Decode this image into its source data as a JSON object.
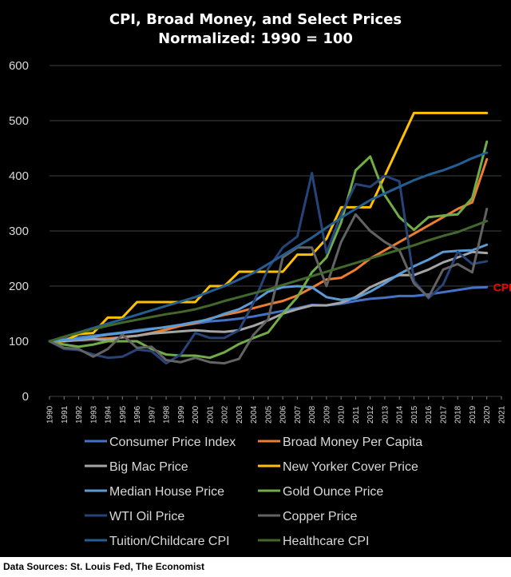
{
  "chart_data": {
    "type": "line",
    "title_lines": [
      "CPI, Broad Money, and Select Prices",
      "Normalized:  1990 = 100"
    ],
    "x": [
      1990,
      1991,
      1992,
      1993,
      1994,
      1995,
      1996,
      1997,
      1998,
      1999,
      2000,
      2001,
      2002,
      2003,
      2004,
      2005,
      2006,
      2007,
      2008,
      2009,
      2010,
      2011,
      2012,
      2013,
      2014,
      2015,
      2016,
      2017,
      2018,
      2019,
      2020
    ],
    "x_ticks": [
      "1990",
      "1991",
      "1992",
      "1993",
      "1994",
      "1995",
      "1996",
      "1997",
      "1998",
      "1999",
      "2000",
      "2001",
      "2002",
      "2003",
      "2004",
      "2005",
      "2006",
      "2007",
      "2008",
      "2009",
      "2010",
      "2011",
      "2012",
      "2013",
      "2014",
      "2015",
      "2016",
      "2017",
      "2018",
      "2019",
      "2020",
      "2021"
    ],
    "ylim": [
      0,
      600
    ],
    "y_ticks": [
      0,
      100,
      200,
      300,
      400,
      500,
      600
    ],
    "grid": "horizontal",
    "legend_position": "bottom",
    "series": [
      {
        "name": "Consumer Price Index",
        "color": "#4472c4",
        "width": 3,
        "values": [
          100,
          104,
          107,
          110,
          113,
          116,
          120,
          123,
          125,
          128,
          132,
          136,
          138,
          141,
          145,
          150,
          155,
          160,
          166,
          165,
          168,
          173,
          177,
          179,
          182,
          182,
          185,
          189,
          193,
          197,
          198
        ]
      },
      {
        "name": "Broad Money Per Capita",
        "color": "#ed7d31",
        "width": 3,
        "values": [
          100,
          102,
          103,
          104,
          105,
          107,
          110,
          115,
          121,
          128,
          133,
          141,
          148,
          153,
          160,
          167,
          173,
          183,
          197,
          212,
          215,
          230,
          250,
          265,
          280,
          295,
          310,
          325,
          340,
          352,
          430
        ]
      },
      {
        "name": "Big Mac Price",
        "color": "#a5a5a5",
        "width": 3,
        "values": [
          100,
          100,
          102,
          104,
          102,
          108,
          110,
          114,
          116,
          118,
          120,
          118,
          117,
          120,
          128,
          138,
          150,
          158,
          165,
          165,
          170,
          180,
          198,
          210,
          220,
          220,
          230,
          243,
          252,
          262,
          260
        ]
      },
      {
        "name": "New Yorker Cover Price",
        "color": "#ffc000",
        "width": 3,
        "values": [
          100,
          100,
          113,
          115,
          143,
          143,
          171,
          171,
          171,
          171,
          171,
          200,
          200,
          226,
          226,
          226,
          226,
          257,
          257,
          286,
          343,
          343,
          343,
          400,
          457,
          514,
          514,
          514,
          514,
          514,
          514
        ]
      },
      {
        "name": "Median House Price",
        "color": "#5b9bd5",
        "width": 3,
        "values": [
          100,
          102,
          104,
          108,
          112,
          115,
          118,
          122,
          126,
          130,
          135,
          140,
          150,
          158,
          172,
          190,
          198,
          200,
          198,
          180,
          175,
          178,
          190,
          205,
          222,
          236,
          248,
          262,
          264,
          265,
          275
        ]
      },
      {
        "name": "Gold Ounce Price",
        "color": "#70ad47",
        "width": 3,
        "values": [
          100,
          94,
          90,
          94,
          100,
          100,
          100,
          86,
          76,
          74,
          74,
          70,
          80,
          95,
          106,
          116,
          150,
          180,
          225,
          252,
          315,
          410,
          435,
          365,
          325,
          302,
          325,
          328,
          330,
          360,
          462
        ]
      },
      {
        "name": "WTI Oil Price",
        "color": "#264478",
        "width": 3,
        "values": [
          100,
          86,
          84,
          76,
          70,
          72,
          85,
          82,
          60,
          76,
          115,
          106,
          106,
          120,
          170,
          232,
          270,
          290,
          405,
          260,
          330,
          385,
          380,
          400,
          390,
          210,
          178,
          203,
          262,
          240,
          245
        ]
      },
      {
        "name": "Copper Price",
        "color": "#636363",
        "width": 3,
        "values": [
          100,
          88,
          86,
          72,
          86,
          112,
          88,
          90,
          66,
          62,
          70,
          62,
          60,
          68,
          112,
          140,
          252,
          270,
          270,
          200,
          280,
          330,
          300,
          280,
          265,
          205,
          180,
          230,
          240,
          225,
          340
        ]
      },
      {
        "name": "Tuition/Childcare CPI",
        "color": "#255e91",
        "width": 3,
        "values": [
          100,
          108,
          116,
          124,
          132,
          140,
          148,
          156,
          164,
          172,
          180,
          190,
          200,
          212,
          224,
          240,
          256,
          272,
          288,
          306,
          324,
          340,
          356,
          368,
          380,
          392,
          402,
          410,
          420,
          432,
          442
        ]
      },
      {
        "name": "Healthcare CPI",
        "color": "#43682b",
        "width": 3,
        "values": [
          100,
          108,
          115,
          122,
          128,
          134,
          139,
          144,
          149,
          153,
          158,
          165,
          173,
          180,
          187,
          194,
          202,
          210,
          218,
          226,
          234,
          242,
          250,
          258,
          266,
          274,
          283,
          291,
          298,
          308,
          318
        ]
      }
    ],
    "annotation": {
      "text": "CPI",
      "x": 2020,
      "y": 198,
      "color": "#ff0000"
    }
  },
  "source": "Data Sources: St. Louis Fed, The Economist"
}
